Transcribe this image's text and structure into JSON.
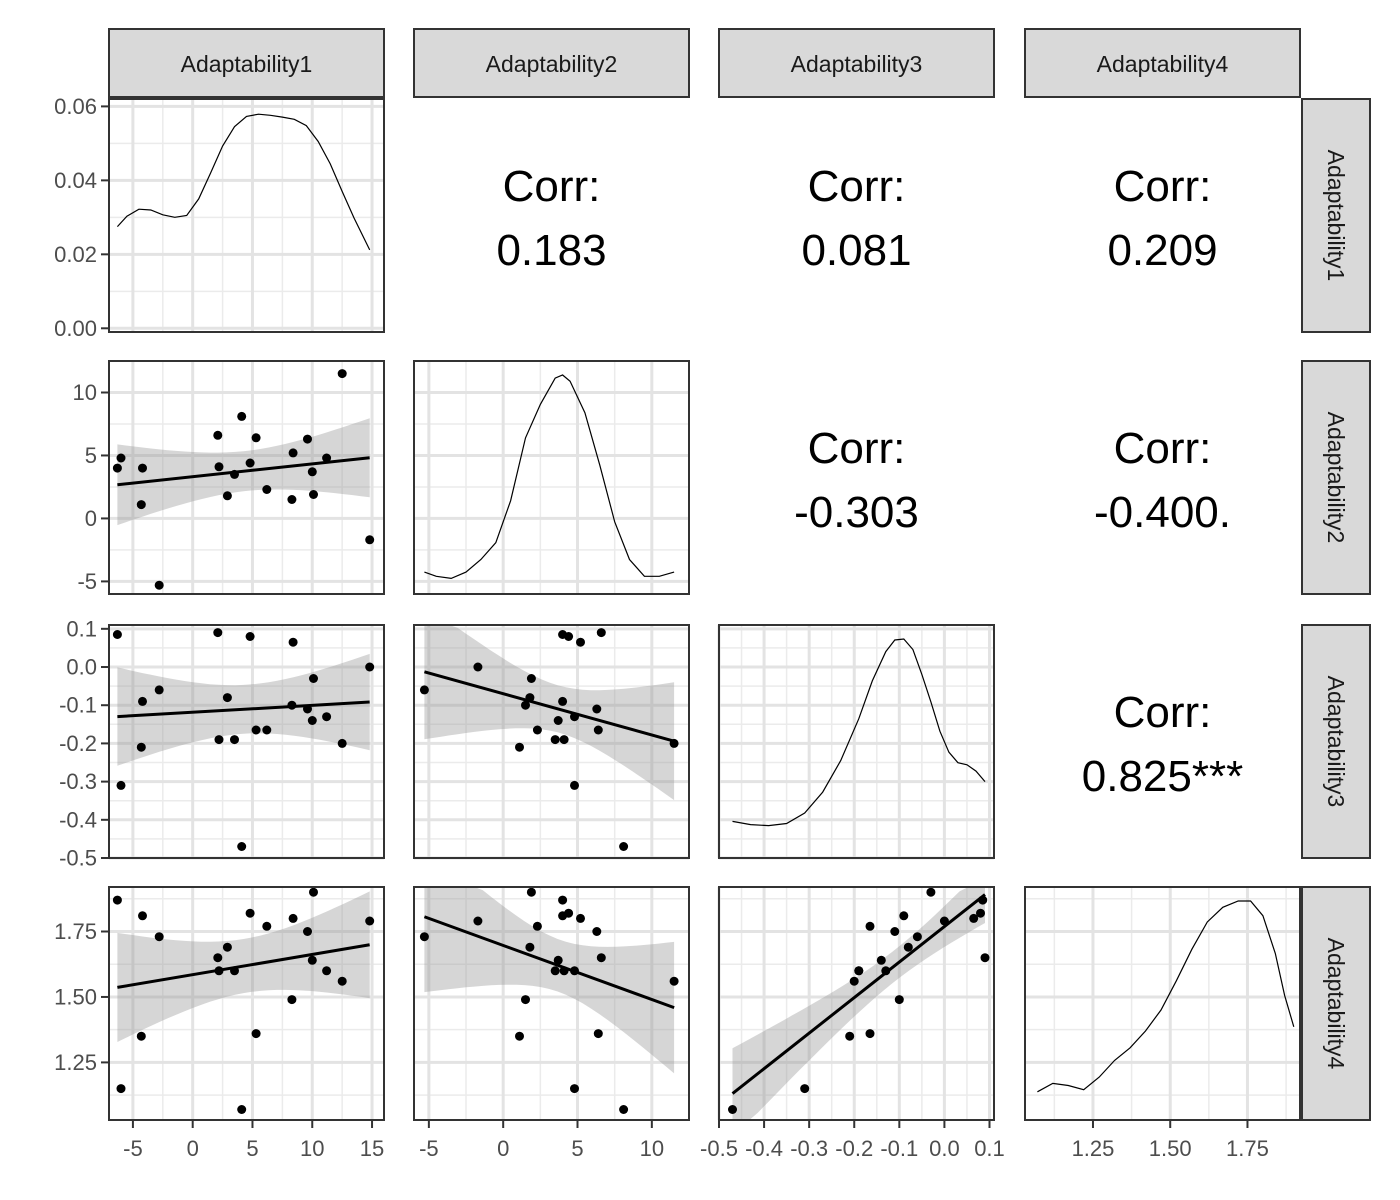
{
  "chart_data": {
    "type": "scatter",
    "variables": [
      "Adaptability1",
      "Adaptability2",
      "Adaptability3",
      "Adaptability4"
    ],
    "column_strips": [
      "Adaptability1",
      "Adaptability2",
      "Adaptability3",
      "Adaptability4"
    ],
    "row_strips": [
      "Adaptability1",
      "Adaptability2",
      "Adaptability3",
      "Adaptability4"
    ],
    "axes": {
      "Adaptability1": {
        "range": [
          -7,
          16
        ],
        "ticks": [
          -5,
          0,
          5,
          10,
          15
        ],
        "tick_labels": [
          "-5",
          "0",
          "5",
          "10",
          "15"
        ]
      },
      "Adaptability2": {
        "range": [
          -6,
          12.5
        ],
        "ticks": [
          -5,
          0,
          5,
          10
        ],
        "tick_labels": [
          "-5",
          "0",
          "5",
          "10"
        ]
      },
      "Adaptability3": {
        "range": [
          -0.5,
          0.11
        ],
        "ticks": [
          -0.5,
          -0.4,
          -0.3,
          -0.2,
          -0.1,
          0.0,
          0.1
        ],
        "tick_labels": [
          "-0.5",
          "-0.4",
          "-0.3",
          "-0.2",
          "-0.1",
          "0.0",
          "0.1"
        ]
      },
      "Adaptability4": {
        "range": [
          1.03,
          1.92
        ],
        "ticks": [
          1.25,
          1.5,
          1.75
        ],
        "tick_labels": [
          "1.25",
          "1.50",
          "1.75"
        ]
      }
    },
    "row_axis_labels": {
      "Adaptability3": [
        "-0.5",
        "-0.4",
        "-0.3",
        "-0.2",
        "-0.1",
        "0.0",
        "0.1"
      ]
    },
    "col_axis_labels": {
      "Adaptability3": [
        "-0.5",
        "-0.4",
        "-0.3",
        "-0.2",
        "-0.1",
        "0.0",
        "0.1"
      ]
    },
    "density_axis": {
      "range": [
        -0.001,
        0.062
      ],
      "ticks": [
        0,
        0.02,
        0.04,
        0.06
      ],
      "tick_labels": [
        "0.00",
        "0.02",
        "0.04",
        "0.06"
      ]
    },
    "correlations": [
      {
        "row": 0,
        "col": 1,
        "label": "Corr:",
        "value": "0.183"
      },
      {
        "row": 0,
        "col": 2,
        "label": "Corr:",
        "value": "0.081"
      },
      {
        "row": 0,
        "col": 3,
        "label": "Corr:",
        "value": "0.209"
      },
      {
        "row": 1,
        "col": 2,
        "label": "Corr:",
        "value": "-0.303"
      },
      {
        "row": 1,
        "col": 3,
        "label": "Corr:",
        "value": "-0.400."
      },
      {
        "row": 2,
        "col": 3,
        "label": "Corr:",
        "value": "0.825***"
      }
    ],
    "points": [
      [
        -6.3,
        4.0,
        0.085,
        1.87
      ],
      [
        -6.0,
        4.8,
        -0.31,
        1.15
      ],
      [
        -4.2,
        4.0,
        -0.09,
        1.81
      ],
      [
        -4.3,
        1.1,
        -0.21,
        1.35
      ],
      [
        -2.8,
        -5.3,
        -0.06,
        1.73
      ],
      [
        2.1,
        6.6,
        0.09,
        1.65
      ],
      [
        2.2,
        4.1,
        -0.19,
        1.6
      ],
      [
        2.9,
        1.8,
        -0.08,
        1.69
      ],
      [
        3.5,
        3.5,
        -0.19,
        1.6
      ],
      [
        4.1,
        8.1,
        -0.47,
        1.07
      ],
      [
        4.8,
        4.4,
        0.08,
        1.82
      ],
      [
        5.3,
        6.4,
        -0.165,
        1.36
      ],
      [
        6.2,
        2.3,
        -0.165,
        1.77
      ],
      [
        8.3,
        1.5,
        -0.1,
        1.49
      ],
      [
        8.4,
        5.2,
        0.065,
        1.8
      ],
      [
        9.6,
        6.3,
        -0.11,
        1.75
      ],
      [
        10.0,
        3.7,
        -0.14,
        1.64
      ],
      [
        10.1,
        1.9,
        -0.03,
        1.9
      ],
      [
        11.2,
        4.8,
        -0.13,
        1.6
      ],
      [
        12.5,
        11.5,
        -0.2,
        1.56
      ],
      [
        14.8,
        -1.7,
        0.0,
        1.79
      ]
    ],
    "densities": [
      {
        "var": "Adaptability1",
        "x": [
          -6.3,
          -5.5,
          -4.5,
          -3.5,
          -2.5,
          -1.5,
          -0.5,
          0.5,
          1.5,
          2.5,
          3.5,
          4.5,
          5.5,
          6.5,
          7.5,
          8.5,
          9.5,
          10.5,
          11.5,
          12.5,
          13.5,
          14.8
        ],
        "y": [
          0.0275,
          0.0303,
          0.0322,
          0.032,
          0.0307,
          0.03,
          0.0305,
          0.035,
          0.042,
          0.0493,
          0.0545,
          0.0573,
          0.0579,
          0.0576,
          0.0571,
          0.0565,
          0.0548,
          0.0505,
          0.0445,
          0.037,
          0.0298,
          0.0212
        ]
      },
      {
        "var": "Adaptability2",
        "x": [
          -5.3,
          -4.5,
          -3.5,
          -2.5,
          -1.5,
          -0.5,
          0.5,
          1.5,
          2.5,
          3.5,
          4.0,
          4.5,
          5.5,
          6.5,
          7.5,
          8.5,
          9.5,
          10.5,
          11.5
        ],
        "y": [
          0.06,
          0.04,
          0.03,
          0.06,
          0.12,
          0.2,
          0.4,
          0.7,
          0.86,
          0.985,
          1.0,
          0.97,
          0.82,
          0.57,
          0.3,
          0.12,
          0.04,
          0.04,
          0.06
        ]
      },
      {
        "var": "Adaptability3",
        "x": [
          -0.47,
          -0.43,
          -0.39,
          -0.35,
          -0.31,
          -0.27,
          -0.23,
          -0.19,
          -0.16,
          -0.13,
          -0.11,
          -0.09,
          -0.07,
          -0.05,
          -0.03,
          -0.01,
          0.01,
          0.03,
          0.05,
          0.07,
          0.09
        ],
        "y": [
          0.13,
          0.115,
          0.11,
          0.12,
          0.17,
          0.27,
          0.42,
          0.62,
          0.8,
          0.94,
          0.995,
          1.0,
          0.95,
          0.83,
          0.7,
          0.56,
          0.46,
          0.41,
          0.4,
          0.37,
          0.32
        ]
      },
      {
        "var": "Adaptability4",
        "x": [
          1.07,
          1.12,
          1.17,
          1.22,
          1.27,
          1.32,
          1.37,
          1.42,
          1.47,
          1.52,
          1.57,
          1.62,
          1.67,
          1.72,
          1.76,
          1.8,
          1.84,
          1.87,
          1.9
        ],
        "y": [
          0.09,
          0.13,
          0.12,
          0.1,
          0.16,
          0.24,
          0.3,
          0.38,
          0.48,
          0.62,
          0.77,
          0.9,
          0.97,
          1.0,
          1.0,
          0.93,
          0.75,
          0.55,
          0.4
        ]
      }
    ]
  }
}
